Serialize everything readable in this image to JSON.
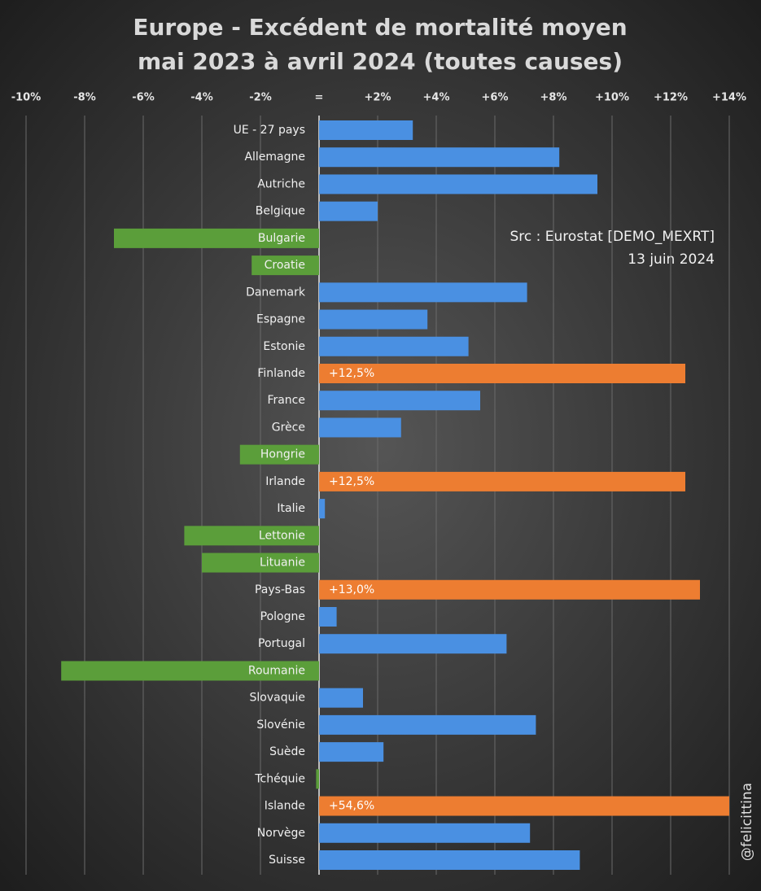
{
  "chart_data": {
    "type": "barh",
    "title": "Europe - Excédent de mortalité moyen",
    "subtitle": "mai 2023 à avril 2024 (toutes causes)",
    "categories": [
      "UE - 27 pays",
      "Allemagne",
      "Autriche",
      "Belgique",
      "Bulgarie",
      "Croatie",
      "Danemark",
      "Espagne",
      "Estonie",
      "Finlande",
      "France",
      "Grèce",
      "Hongrie",
      "Irlande",
      "Italie",
      "Lettonie",
      "Lituanie",
      "Pays-Bas",
      "Pologne",
      "Portugal",
      "Roumanie",
      "Slovaquie",
      "Slovénie",
      "Suède",
      "Tchéquie",
      "Islande",
      "Norvège",
      "Suisse"
    ],
    "values": [
      3.2,
      8.2,
      9.5,
      2.0,
      -7.0,
      -2.3,
      7.1,
      3.7,
      5.1,
      12.5,
      5.5,
      2.8,
      -2.7,
      12.5,
      0.2,
      -4.6,
      -4.0,
      13.0,
      0.6,
      6.4,
      -8.8,
      1.5,
      7.4,
      2.2,
      -0.1,
      54.6,
      7.2,
      8.9
    ],
    "value_labels": [
      null,
      null,
      null,
      null,
      null,
      null,
      null,
      null,
      null,
      "+12,5%",
      null,
      null,
      null,
      "+12,5%",
      null,
      null,
      null,
      "+13,0%",
      null,
      null,
      null,
      null,
      null,
      null,
      null,
      "+54,6%",
      null,
      null
    ],
    "colors": [
      "#4a90e2",
      "#4a90e2",
      "#4a90e2",
      "#4a90e2",
      "#5b9e3a",
      "#5b9e3a",
      "#4a90e2",
      "#4a90e2",
      "#4a90e2",
      "#ed7d31",
      "#4a90e2",
      "#4a90e2",
      "#5b9e3a",
      "#ed7d31",
      "#4a90e2",
      "#5b9e3a",
      "#5b9e3a",
      "#ed7d31",
      "#4a90e2",
      "#4a90e2",
      "#5b9e3a",
      "#4a90e2",
      "#4a90e2",
      "#4a90e2",
      "#5b9e3a",
      "#ed7d31",
      "#4a90e2",
      "#4a90e2"
    ],
    "xlim": [
      -10,
      14
    ],
    "xticks": [
      {
        "value": -10,
        "label": "-10%"
      },
      {
        "value": -8,
        "label": "-8%"
      },
      {
        "value": -6,
        "label": "-6%"
      },
      {
        "value": -4,
        "label": "-4%"
      },
      {
        "value": -2,
        "label": "-2%"
      },
      {
        "value": 0,
        "label": "="
      },
      {
        "value": 2,
        "label": "+2%"
      },
      {
        "value": 4,
        "label": "+4%"
      },
      {
        "value": 6,
        "label": "+6%"
      },
      {
        "value": 8,
        "label": "+8%"
      },
      {
        "value": 10,
        "label": "+10%"
      },
      {
        "value": 12,
        "label": "+12%"
      },
      {
        "value": 14,
        "label": "+14%"
      }
    ],
    "grid": true,
    "annotations": [
      "Src : Eurostat [DEMO_MEXRT]",
      "13 juin 2024",
      "@felicittina"
    ]
  }
}
